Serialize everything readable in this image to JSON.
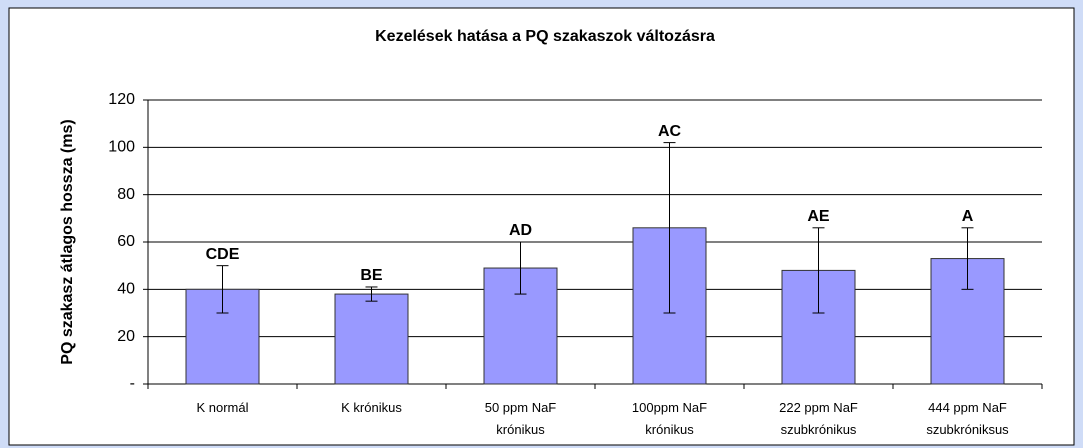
{
  "chart_data": {
    "type": "bar",
    "title": "Kezelések hatása a PQ szakaszok változásra",
    "y_label": "PQ szakasz átlagos hossza (ms)",
    "categories": [
      "K normál",
      "K krónikus",
      "50 ppm NaF\nkrónikus",
      "100ppm NaF\nkrónikus",
      "222 ppm NaF\nszubkrónikus",
      "444 ppm NaF\nszubkróniksus"
    ],
    "values": [
      40,
      38,
      49,
      66,
      48,
      53
    ],
    "errors": [
      10,
      3,
      11,
      36,
      18,
      13
    ],
    "annotations": [
      "CDE",
      "BE",
      "AD",
      "AC",
      "AE",
      "A"
    ],
    "color": "#9999ff",
    "ylim": [
      0,
      120
    ],
    "yticks": [
      {
        "value": 0,
        "label": "-"
      },
      20,
      40,
      60,
      80,
      100,
      120
    ],
    "grid": true
  }
}
